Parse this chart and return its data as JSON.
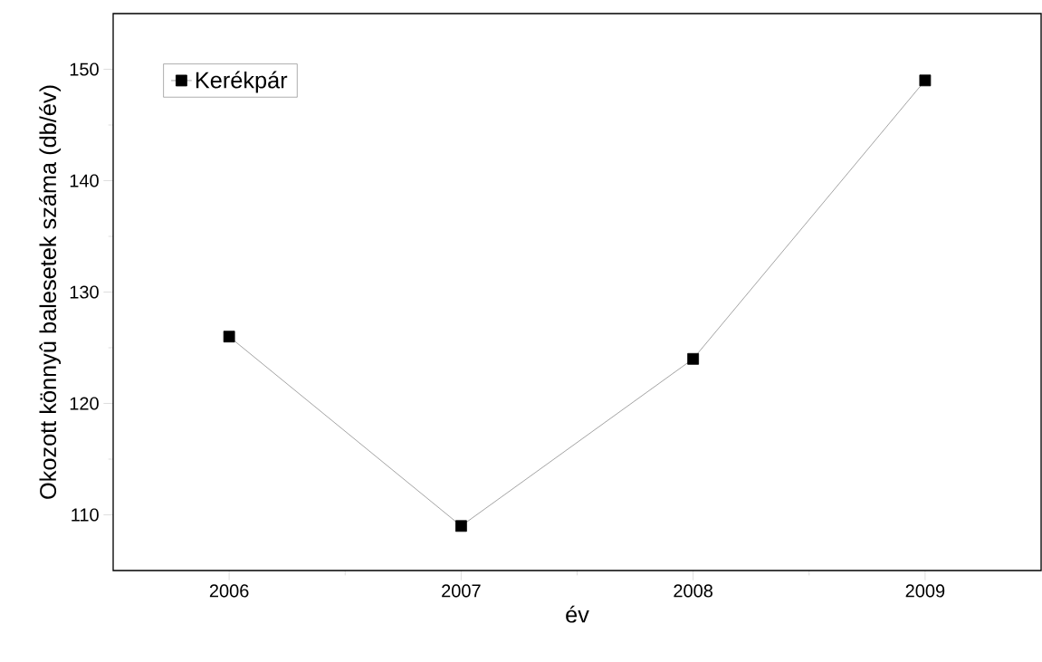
{
  "chart_data": {
    "type": "line",
    "xlabel": "év",
    "ylabel": "Okozott könnyû balesetek száma (db/év)",
    "x": [
      2006,
      2007,
      2008,
      2009
    ],
    "series": [
      {
        "name": "Kerékpár",
        "color": "#000000",
        "values": [
          126,
          109,
          124,
          149
        ]
      }
    ],
    "xlim": [
      2005.5,
      2009.5
    ],
    "xticks": [
      2006,
      2007,
      2008,
      2009
    ],
    "ylim": [
      105,
      155
    ],
    "yticks": [
      110,
      120,
      130,
      140,
      150
    ],
    "grid": false,
    "legend": "top left",
    "marker": "square",
    "line_style": "solid"
  }
}
